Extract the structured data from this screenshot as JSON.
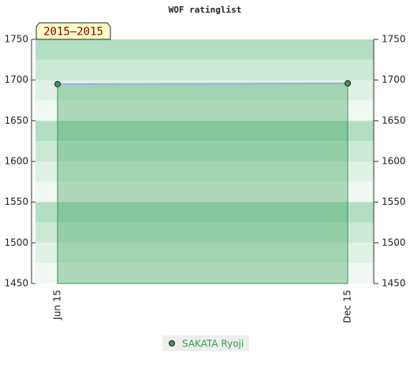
{
  "chart_data": {
    "type": "area",
    "title": "WOF ratinglist",
    "annotation": "2015–2015",
    "categories": [
      "Jun 15",
      "Dec 15"
    ],
    "series": [
      {
        "name": "SAKATA Ryoji",
        "color": "#2e9e50",
        "values": [
          1695,
          1696
        ]
      }
    ],
    "ylim": [
      1450,
      1750
    ],
    "yticks": [
      1450,
      1500,
      1550,
      1600,
      1650,
      1700,
      1750
    ],
    "y2lim": [
      1450,
      1750
    ],
    "y2ticks": [
      1450,
      1500,
      1550,
      1600,
      1650,
      1700,
      1750
    ],
    "legend": "bottom"
  }
}
